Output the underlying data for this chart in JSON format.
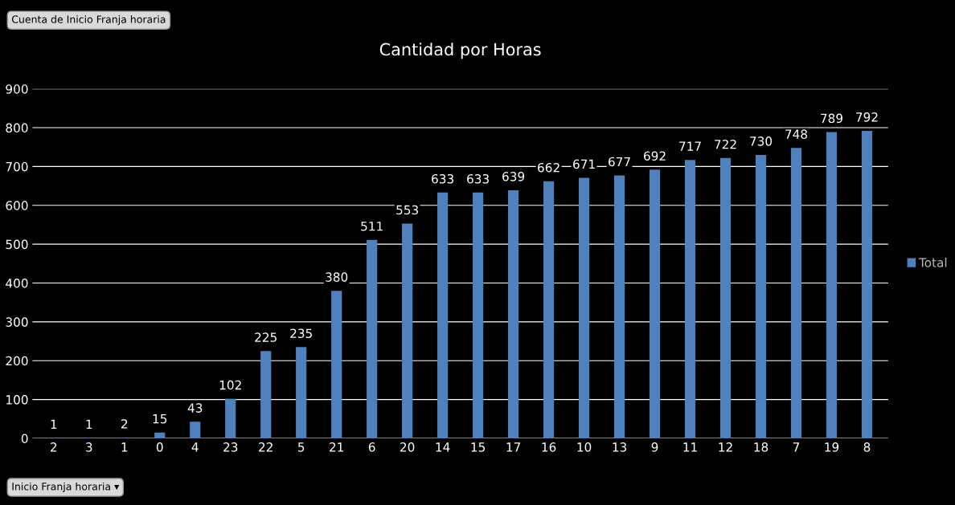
{
  "chart_data": {
    "type": "bar",
    "title": "Cantidad por Horas",
    "categories": [
      "2",
      "3",
      "1",
      "0",
      "4",
      "23",
      "22",
      "5",
      "21",
      "6",
      "20",
      "14",
      "15",
      "17",
      "16",
      "10",
      "13",
      "9",
      "11",
      "12",
      "18",
      "7",
      "19",
      "8"
    ],
    "series": [
      {
        "name": "Total",
        "color": "#4f81bd",
        "values": [
          1,
          1,
          2,
          15,
          43,
          102,
          225,
          235,
          380,
          511,
          553,
          633,
          633,
          639,
          662,
          671,
          677,
          692,
          717,
          722,
          730,
          748,
          789,
          792
        ]
      }
    ],
    "ylim": [
      0,
      900
    ],
    "yticks": [
      0,
      100,
      200,
      300,
      400,
      500,
      600,
      700,
      800,
      900
    ],
    "grid": "y",
    "legend": "right",
    "data_labels": true,
    "annotations": [
      "Cuenta de Inicio Franja horaria",
      "Inicio Franja horaria ▾"
    ]
  }
}
